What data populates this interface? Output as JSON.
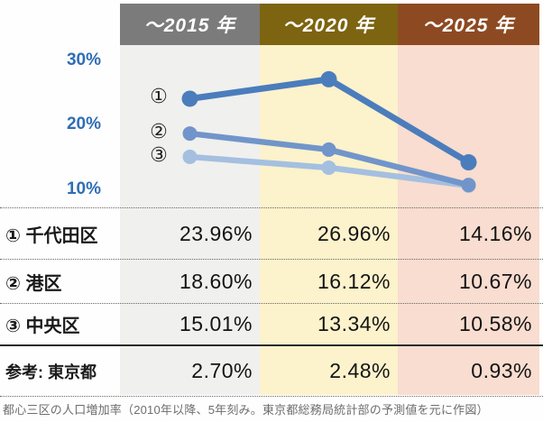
{
  "columns": [
    {
      "label": "～2015 年",
      "header_bg": "#7b7b7b",
      "body_bg": "#f0f0ee"
    },
    {
      "label": "～2020 年",
      "header_bg": "#7d6410",
      "body_bg": "#fcf2cc"
    },
    {
      "label": "～2025 年",
      "header_bg": "#8d4a22",
      "body_bg": "#f8ddd0"
    }
  ],
  "chart_data": {
    "type": "line",
    "categories": [
      "～2015 年",
      "～2020 年",
      "～2025 年"
    ],
    "series": [
      {
        "name": "千代田区",
        "marker": "①",
        "color": "#4b7dbc",
        "values": [
          23.96,
          26.96,
          14.16
        ]
      },
      {
        "name": "港区",
        "marker": "②",
        "color": "#7195ca",
        "values": [
          18.6,
          16.12,
          10.67
        ]
      },
      {
        "name": "中央区",
        "marker": "③",
        "color": "#a4bfe0",
        "values": [
          15.01,
          13.34,
          10.58
        ]
      }
    ],
    "yticks": [
      "30%",
      "20%",
      "10%"
    ],
    "ylim": [
      8,
      33
    ],
    "grid": false,
    "legend_position": "inline-left-circled-numbers",
    "title": "都心三区の人口増加率"
  },
  "table": {
    "rows": [
      {
        "label": "① 千代田区",
        "values": [
          "23.96%",
          "26.96%",
          "14.16%"
        ]
      },
      {
        "label": "② 港区",
        "values": [
          "18.60%",
          "16.12%",
          "10.67%"
        ]
      },
      {
        "label": "③ 中央区",
        "values": [
          "15.01%",
          "13.34%",
          "10.58%"
        ]
      },
      {
        "label": "参考: 東京都",
        "values": [
          "2.70%",
          "2.48%",
          "0.93%"
        ]
      }
    ]
  },
  "caption": "都心三区の人口増加率（2010年以降、5年刻み。東京都総務局統計部の予測値を元に作図）",
  "colors": {
    "tick_label": "#2f6eb5",
    "caption_text": "#6e6e6e",
    "table_text": "#141414"
  }
}
